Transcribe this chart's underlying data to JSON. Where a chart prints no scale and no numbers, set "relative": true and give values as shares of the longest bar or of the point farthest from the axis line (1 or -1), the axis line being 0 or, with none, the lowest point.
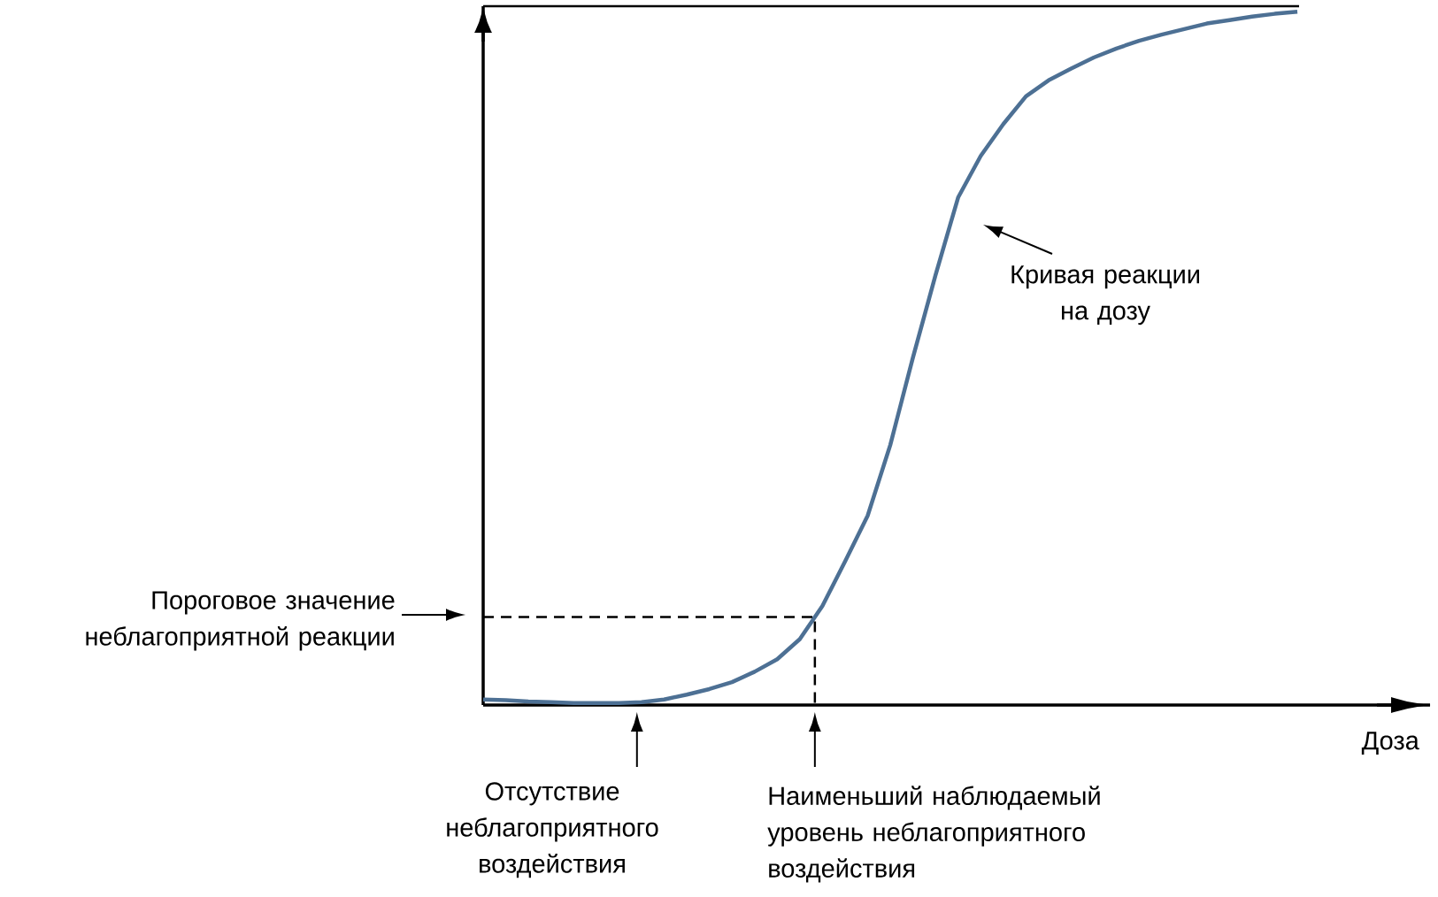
{
  "chart_data": {
    "type": "line",
    "relative": true,
    "xlabel": "Доза",
    "categories": [
      null,
      null,
      null,
      null,
      null,
      null,
      null,
      null,
      null,
      null,
      null,
      null,
      null,
      null,
      null,
      null,
      null,
      null,
      null,
      null,
      null,
      null,
      null,
      null,
      null,
      null,
      null,
      null,
      null,
      null,
      null,
      null,
      null,
      null,
      null,
      null,
      null
    ],
    "series": [
      {
        "color": "#4d7094",
        "values": [
          0.008,
          0.007,
          0.005,
          0.004,
          0.003,
          0.003,
          0.003,
          0.004,
          0.008,
          0.015,
          0.023,
          0.033,
          0.048,
          0.066,
          0.095,
          0.143,
          0.207,
          0.273,
          0.375,
          0.501,
          0.62,
          0.732,
          0.792,
          0.838,
          0.878,
          0.901,
          0.918,
          0.934,
          0.947,
          0.958,
          0.967,
          0.975,
          0.983,
          0.988,
          0.993,
          0.997,
          1.0
        ]
      }
    ],
    "ref_lines": [
      {
        "axis": "y",
        "value": 0.127,
        "label": "Пороговое значение неблагоприятной реакции",
        "color": "#000000",
        "line_style": "dashed"
      }
    ],
    "annotations": [
      "Отсутствие неблагоприятного воздействия",
      "Наименьший наблюдаемый уровень неблагоприятного воздействия",
      "Кривая реакции на дозу"
    ]
  }
}
